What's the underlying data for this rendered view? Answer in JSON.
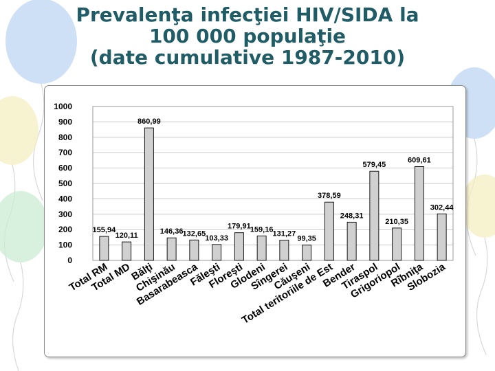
{
  "slide": {
    "title_lines": [
      "Prevalenţa infecţiei HIV/SIDA la",
      "100 000 populaţie",
      "(date cumulative 1987-2010)"
    ]
  },
  "colors": {
    "title": "#1f5c66",
    "bar_fill": "#d0d0d0",
    "bar_stroke": "#000000",
    "gridline": "#c8c8c8",
    "balloon_blue": "#bcd6f2",
    "balloon_yellow": "#f4eec0",
    "balloon_green": "#c9ecd3"
  },
  "chart_data": {
    "type": "bar",
    "title": "",
    "xlabel": "",
    "ylabel": "",
    "ylim": [
      0,
      1000
    ],
    "yticks": [
      0,
      100,
      200,
      300,
      400,
      500,
      600,
      700,
      800,
      900,
      1000
    ],
    "grid": "horizontal",
    "legend": "none",
    "categories": [
      "Total RM",
      "Total MD",
      "Bălţi",
      "Chişinău",
      "Basarabeasca",
      "Făleşti",
      "Floreşti",
      "Glodeni",
      "Sîngerei",
      "Căuşeni",
      "Total teritoriile de Est",
      "Bender",
      "Tiraspol",
      "Grigoriopol",
      "Rîbniţa",
      "Slobozia"
    ],
    "values": [
      155.94,
      120.11,
      860.99,
      146.36,
      132.65,
      103.33,
      179.91,
      159.16,
      131.27,
      99.35,
      378.59,
      248.31,
      579.45,
      210.35,
      609.61,
      302.44
    ],
    "value_labels": [
      "155,94",
      "120,11",
      "860,99",
      "146,36",
      "132,65",
      "103,33",
      "179,91",
      "159,16",
      "131,27",
      "99,35",
      "378,59",
      "248,31",
      "579,45",
      "210,35",
      "609,61",
      "302,44"
    ]
  }
}
